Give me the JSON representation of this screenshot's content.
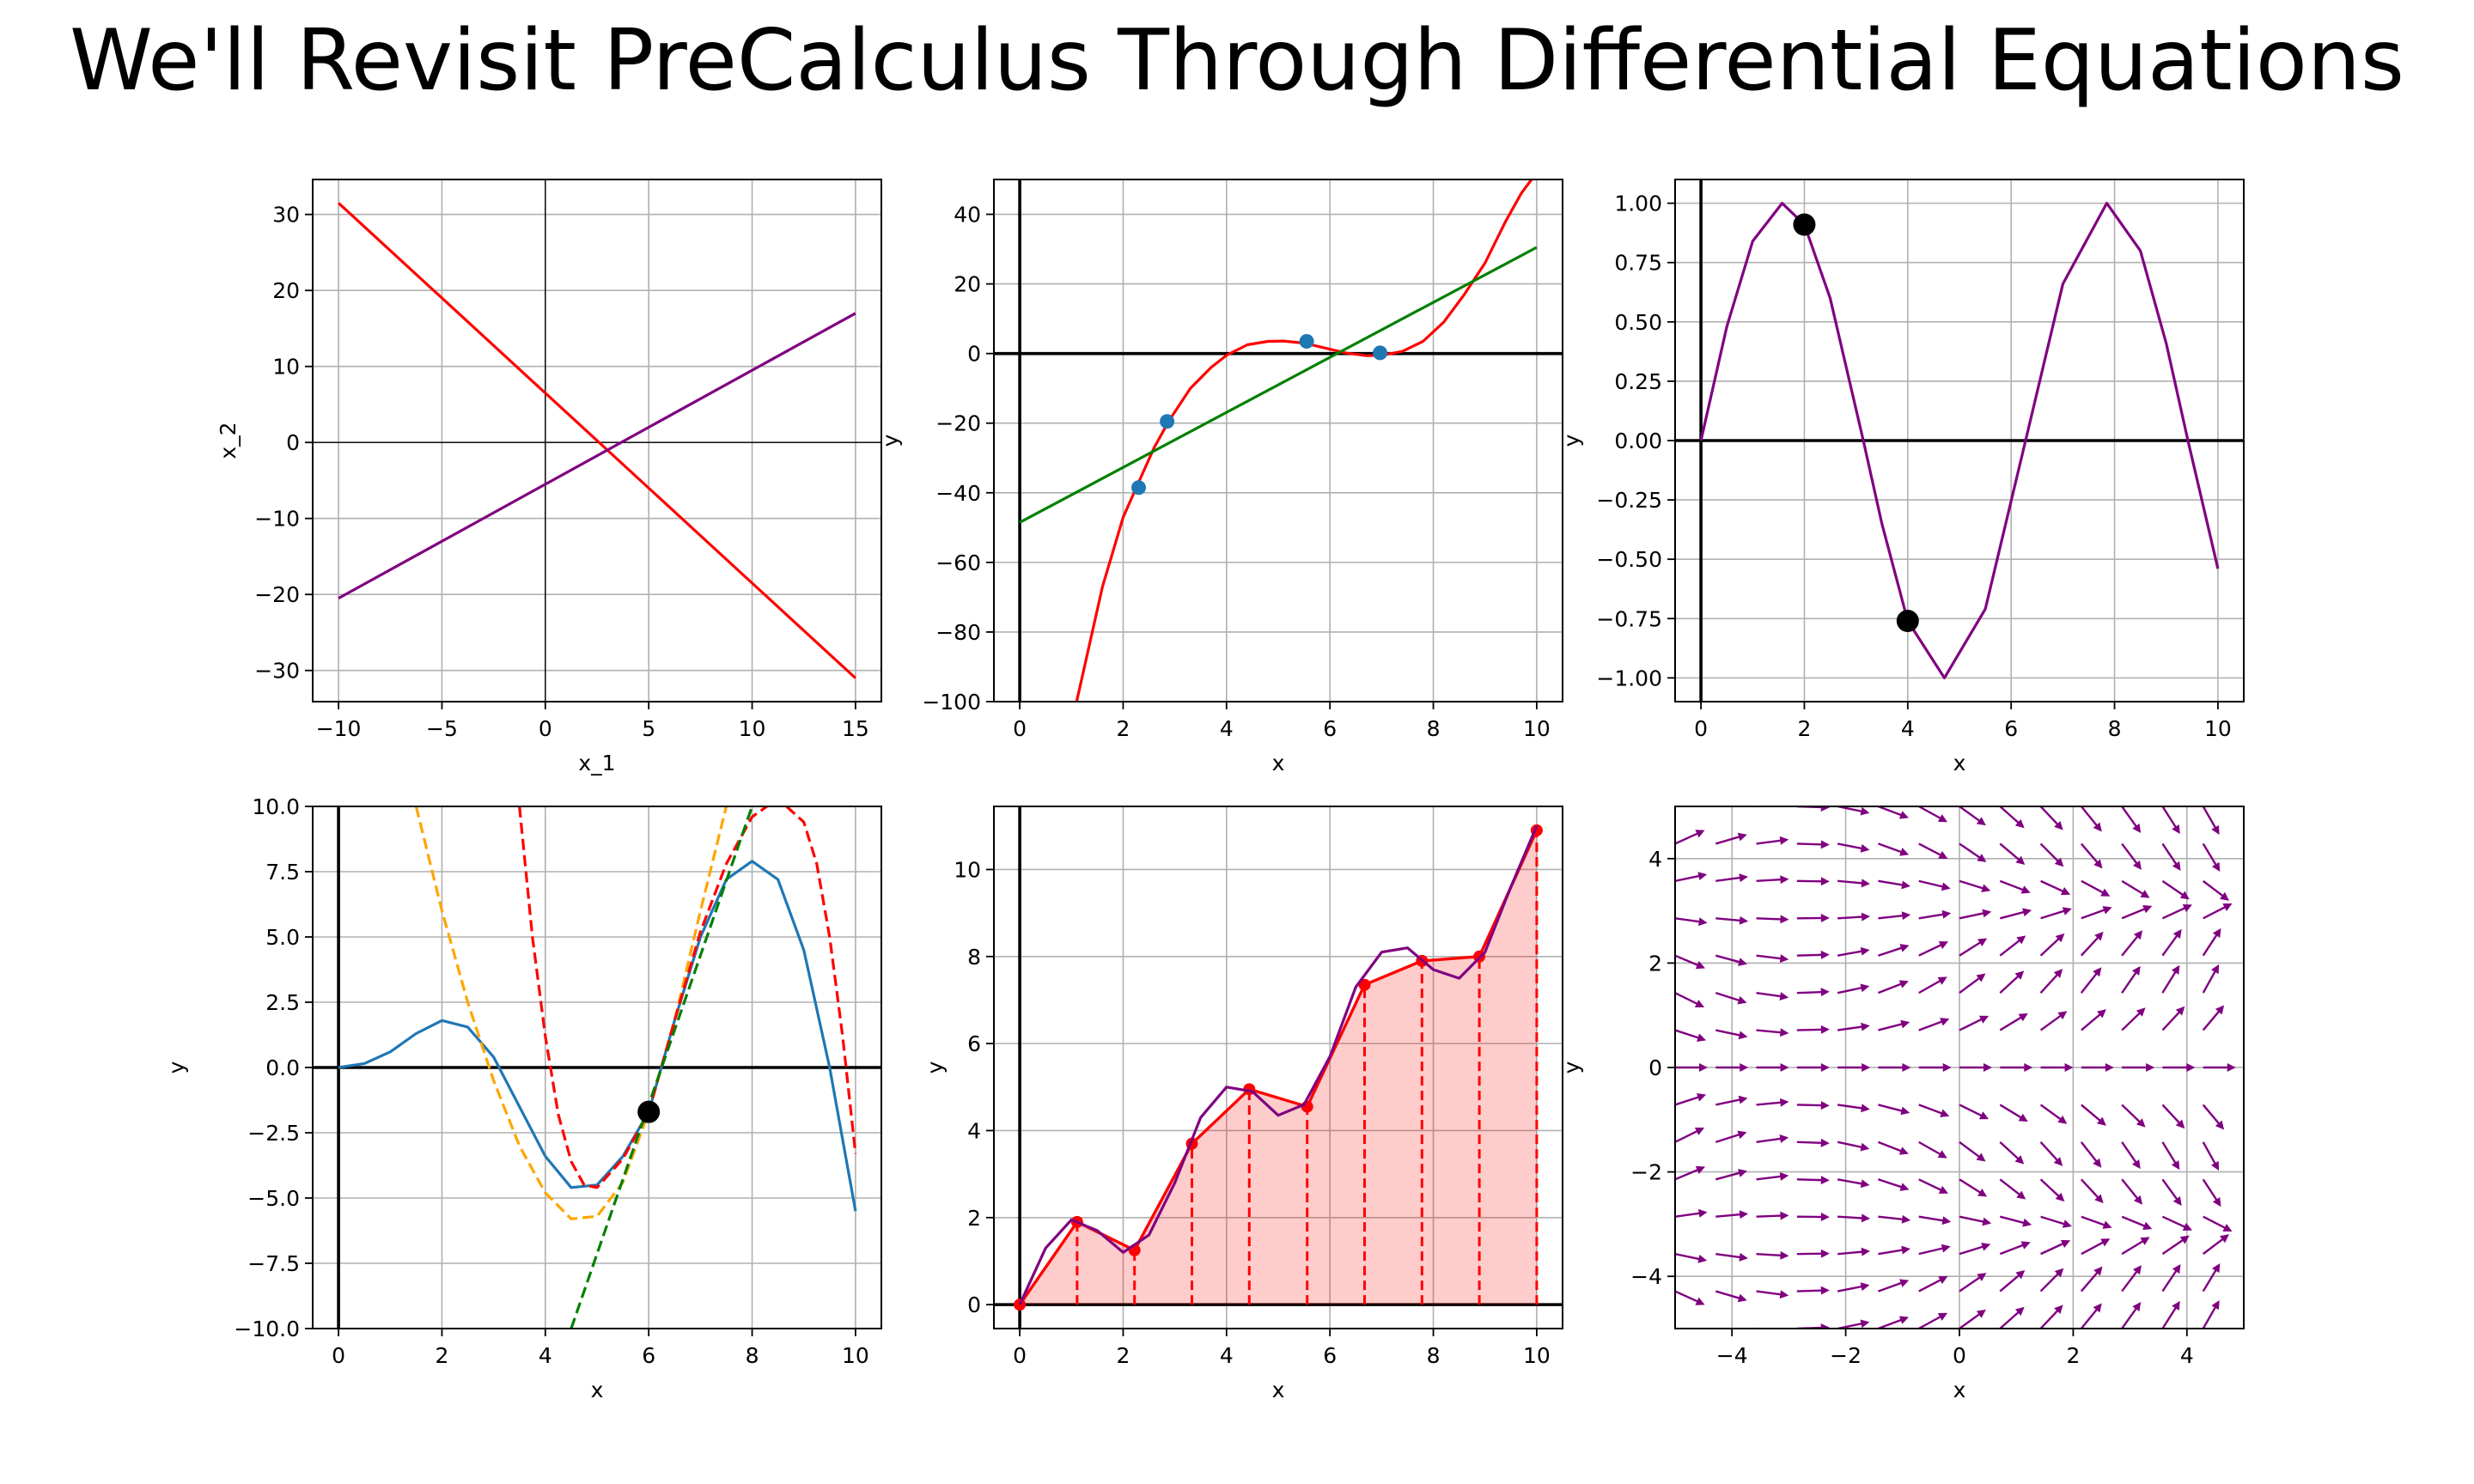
{
  "title": "We'll Revisit PreCalculus Through Differential Equations",
  "chart_data": [
    {
      "id": "p1",
      "type": "line",
      "xlabel": "x_1",
      "ylabel": "x_2",
      "xlim": [
        -11.25,
        16.25
      ],
      "ylim": [
        -34.1,
        34.6
      ],
      "xticks": [
        -10,
        -5,
        0,
        5,
        10,
        15
      ],
      "yticks": [
        -30,
        -20,
        -10,
        0,
        10,
        20,
        30
      ],
      "xtick_labels": [
        "−10",
        "−5",
        "0",
        "5",
        "10",
        "15"
      ],
      "ytick_labels": [
        "−30",
        "−20",
        "−10",
        "0",
        "10",
        "20",
        "30"
      ],
      "grid": true,
      "axis_lines": {
        "x0": true,
        "y0": true,
        "weight": "thin"
      },
      "series": [
        {
          "type": "line",
          "color": "#ff0000",
          "x": [
            -10,
            15
          ],
          "y": [
            31.5,
            -31
          ]
        },
        {
          "type": "line",
          "color": "#800080",
          "x": [
            -10,
            15
          ],
          "y": [
            -20.5,
            17
          ]
        }
      ]
    },
    {
      "id": "p2",
      "type": "line",
      "xlabel": "x",
      "ylabel": "y",
      "xlim": [
        -0.5,
        10.5
      ],
      "ylim": [
        -100,
        50
      ],
      "xticks": [
        0,
        2,
        4,
        6,
        8,
        10
      ],
      "yticks": [
        -100,
        -80,
        -60,
        -40,
        -20,
        0,
        20,
        40
      ],
      "xtick_labels": [
        "0",
        "2",
        "4",
        "6",
        "8",
        "10"
      ],
      "ytick_labels": [
        "−100",
        "−80",
        "−60",
        "−40",
        "−20",
        "0",
        "20",
        "40"
      ],
      "grid": true,
      "axis_lines": {
        "x0": true,
        "y0": true,
        "weight": "thick"
      },
      "series": [
        {
          "type": "line",
          "color": "#ff0000",
          "x": [
            1.1,
            1.6,
            2.0,
            2.3,
            2.6,
            2.9,
            3.3,
            3.7,
            4.0,
            4.4,
            4.8,
            5.1,
            5.5,
            5.9,
            6.3,
            6.7,
            7.0,
            7.4,
            7.8,
            8.2,
            8.6,
            9.0,
            9.4,
            9.7,
            9.95
          ],
          "y": [
            -100,
            -67,
            -47,
            -37,
            -27,
            -19,
            -10,
            -4,
            -0.5,
            2.5,
            3.5,
            3.6,
            3.0,
            1.6,
            0.2,
            -0.6,
            -0.5,
            0.6,
            3.5,
            9,
            17,
            26,
            38,
            46,
            51
          ]
        },
        {
          "type": "line",
          "color": "#008000",
          "x": [
            0,
            10
          ],
          "y": [
            -48.5,
            30.5
          ]
        },
        {
          "type": "scatter",
          "color": "#1f77b4",
          "x": [
            2.3,
            2.85,
            5.55,
            6.97
          ],
          "y": [
            -38.5,
            -19.5,
            3.5,
            0.2
          ]
        }
      ]
    },
    {
      "id": "p3",
      "type": "line",
      "xlabel": "x",
      "ylabel": "y",
      "xlim": [
        -0.5,
        10.5
      ],
      "ylim": [
        -1.1,
        1.1
      ],
      "xticks": [
        0,
        2,
        4,
        6,
        8,
        10
      ],
      "yticks": [
        -1.0,
        -0.75,
        -0.5,
        -0.25,
        0.0,
        0.25,
        0.5,
        0.75,
        1.0
      ],
      "xtick_labels": [
        "0",
        "2",
        "4",
        "6",
        "8",
        "10"
      ],
      "ytick_labels": [
        "−1.00",
        "−0.75",
        "−0.50",
        "−0.25",
        "0.00",
        "0.25",
        "0.50",
        "0.75",
        "1.00"
      ],
      "grid": true,
      "axis_lines": {
        "x0": true,
        "y0": true,
        "weight": "thick"
      },
      "series": [
        {
          "type": "line",
          "color": "#800080",
          "x": [
            0,
            0.5,
            1.0,
            1.57,
            2.0,
            2.5,
            3.14,
            3.5,
            4.0,
            4.71,
            5.5,
            6.28,
            7.0,
            7.85,
            8.5,
            9.0,
            9.42,
            10.0
          ],
          "y": [
            0,
            0.48,
            0.84,
            1.0,
            0.91,
            0.6,
            0.0,
            -0.35,
            -0.76,
            -1.0,
            -0.71,
            0.0,
            0.66,
            1.0,
            0.8,
            0.41,
            0.0,
            -0.54
          ]
        },
        {
          "type": "scatter",
          "color": "#000000",
          "x": [
            2,
            4
          ],
          "y": [
            0.91,
            -0.76
          ]
        }
      ]
    },
    {
      "id": "p4",
      "type": "line",
      "xlabel": "x",
      "ylabel": "y",
      "xlim": [
        -0.5,
        10.5
      ],
      "ylim": [
        -10,
        10
      ],
      "xticks": [
        0,
        2,
        4,
        6,
        8,
        10
      ],
      "yticks": [
        -10,
        -7.5,
        -5,
        -2.5,
        0,
        2.5,
        5,
        7.5,
        10
      ],
      "xtick_labels": [
        "0",
        "2",
        "4",
        "6",
        "8",
        "10"
      ],
      "ytick_labels": [
        "−10.0",
        "−7.5",
        "−5.0",
        "−2.5",
        "0.0",
        "2.5",
        "5.0",
        "7.5",
        "10.0"
      ],
      "grid": true,
      "axis_lines": {
        "x0": true,
        "y0": true,
        "weight": "thick"
      },
      "series": [
        {
          "type": "line",
          "color": "#1f77b4",
          "x": [
            0,
            0.5,
            1.0,
            1.5,
            2.0,
            2.5,
            3.0,
            3.5,
            4.0,
            4.5,
            5.0,
            5.5,
            6.0,
            6.5,
            7.0,
            7.5,
            8.0,
            8.5,
            9.0,
            9.5,
            10.0
          ],
          "y": [
            0,
            0.15,
            0.6,
            1.3,
            1.8,
            1.55,
            0.4,
            -1.5,
            -3.4,
            -4.6,
            -4.5,
            -3.4,
            -1.7,
            1.8,
            5.0,
            7.2,
            7.9,
            7.2,
            4.5,
            0.0,
            -5.5
          ]
        },
        {
          "type": "line",
          "dash": true,
          "color": "#ffa500",
          "x": [
            1.5,
            2.0,
            2.5,
            3.0,
            3.5,
            4.0,
            4.5,
            5.0,
            5.5,
            6.0,
            6.5,
            7.0,
            7.5
          ],
          "y": [
            10,
            6.0,
            2.5,
            -0.5,
            -3.0,
            -4.8,
            -5.8,
            -5.7,
            -4.4,
            -1.7,
            1.8,
            6.0,
            10.0
          ]
        },
        {
          "type": "line",
          "dash": true,
          "color": "#ff0000",
          "x": [
            3.5,
            3.75,
            4.0,
            4.25,
            4.5,
            4.75,
            5.0,
            5.5,
            6.0,
            6.5,
            7.0,
            7.5,
            8.0,
            8.5,
            9.0,
            9.25,
            9.5,
            9.75,
            10.0
          ],
          "y": [
            10,
            5.0,
            1.2,
            -1.8,
            -3.6,
            -4.5,
            -4.6,
            -3.5,
            -1.7,
            1.8,
            5.2,
            7.8,
            9.6,
            10.3,
            9.4,
            7.8,
            5.0,
            1.2,
            -3.3
          ]
        },
        {
          "type": "line",
          "dash": true,
          "color": "#008000",
          "x": [
            4.5,
            8.0
          ],
          "y": [
            -10,
            10
          ]
        },
        {
          "type": "scatter",
          "color": "#000000",
          "x": [
            6
          ],
          "y": [
            -1.7
          ]
        }
      ]
    },
    {
      "id": "p5",
      "type": "line",
      "xlabel": "x",
      "ylabel": "y",
      "xlim": [
        -0.5,
        10.5
      ],
      "ylim": [
        -0.55,
        11.45
      ],
      "xticks": [
        0,
        2,
        4,
        6,
        8,
        10
      ],
      "yticks": [
        0,
        2,
        4,
        6,
        8,
        10
      ],
      "xtick_labels": [
        "0",
        "2",
        "4",
        "6",
        "8",
        "10"
      ],
      "ytick_labels": [
        "0",
        "2",
        "4",
        "6",
        "8",
        "10"
      ],
      "grid": true,
      "axis_lines": {
        "x0": true,
        "y0": true,
        "weight": "thick"
      },
      "series": [
        {
          "type": "area",
          "color": "#ff0000",
          "x": [
            0,
            1.11,
            2.22,
            3.33,
            4.44,
            5.56,
            6.67,
            7.78,
            8.89,
            10.0
          ],
          "y": [
            0,
            1.9,
            1.25,
            3.7,
            4.95,
            4.55,
            7.35,
            7.9,
            8.0,
            10.9
          ]
        },
        {
          "type": "line",
          "color": "#800080",
          "x": [
            0,
            0.5,
            1.0,
            1.5,
            2.0,
            2.5,
            3.0,
            3.5,
            4.0,
            4.5,
            5.0,
            5.5,
            6.0,
            6.5,
            7.0,
            7.5,
            8.0,
            8.5,
            9.0,
            9.5,
            10.0
          ],
          "y": [
            0,
            1.3,
            1.95,
            1.7,
            1.2,
            1.6,
            2.8,
            4.3,
            5.0,
            4.9,
            4.35,
            4.6,
            5.7,
            7.3,
            8.1,
            8.2,
            7.7,
            7.5,
            8.1,
            9.6,
            11.0
          ]
        }
      ]
    },
    {
      "id": "p6",
      "type": "quiver",
      "xlabel": "x",
      "ylabel": "y",
      "xlim": [
        -5,
        5
      ],
      "ylim": [
        -5,
        5
      ],
      "xticks": [
        -4,
        -2,
        0,
        2,
        4
      ],
      "yticks": [
        -4,
        -2,
        0,
        2,
        4
      ],
      "xtick_labels": [
        "−4",
        "−2",
        "0",
        "2",
        "4"
      ],
      "ytick_labels": [
        "−4",
        "−2",
        "0",
        "2",
        "4"
      ],
      "grid": true,
      "arrow_color": "#800080",
      "grid_points": {
        "start": -5,
        "stop": 5,
        "count": 15
      },
      "field": "slope dy/dx = sin(y) · (x + 3) / 4 (approx.)"
    }
  ]
}
